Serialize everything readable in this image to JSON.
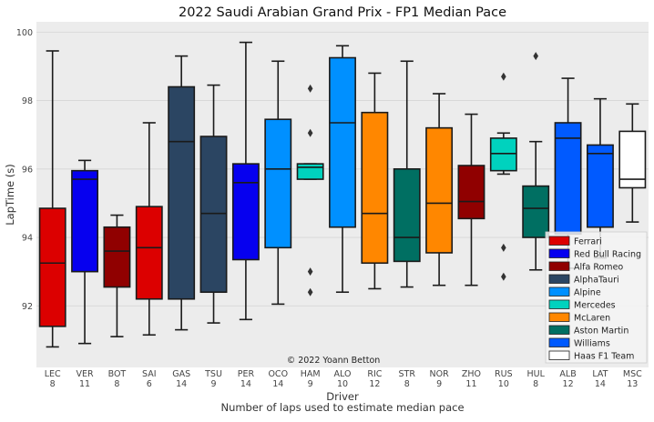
{
  "chart_data": {
    "type": "box",
    "title": "2022 Saudi Arabian Grand Prix - FP1 Median Pace",
    "xlabel": "Driver",
    "xlabel_sub": "Number of laps used to estimate median pace",
    "ylabel": "LapTime (s)",
    "ylim": [
      90.2,
      100.3
    ],
    "yticks": [
      92,
      94,
      96,
      98,
      100
    ],
    "grid": true,
    "legend_position": "lower-right",
    "annotation": "© 2022 Yoann Betton",
    "teams": [
      {
        "name": "Ferrari",
        "color": "#dc0000"
      },
      {
        "name": "Red Bull Racing",
        "color": "#0600ef"
      },
      {
        "name": "Alfa Romeo",
        "color": "#900000"
      },
      {
        "name": "AlphaTauri",
        "color": "#2b4562"
      },
      {
        "name": "Alpine",
        "color": "#0090ff"
      },
      {
        "name": "Mercedes",
        "color": "#00d2be"
      },
      {
        "name": "McLaren",
        "color": "#ff8700"
      },
      {
        "name": "Aston Martin",
        "color": "#006f62"
      },
      {
        "name": "Williams",
        "color": "#005aff"
      },
      {
        "name": "Haas F1 Team",
        "color": "#ffffff"
      }
    ],
    "drivers": [
      {
        "code": "LEC",
        "laps": "8",
        "team": 0,
        "whislo": 90.8,
        "q1": 91.4,
        "med": 93.25,
        "q3": 94.85,
        "whishi": 99.45,
        "fliers": []
      },
      {
        "code": "VER",
        "laps": "11",
        "team": 1,
        "whislo": 90.9,
        "q1": 93.0,
        "med": 95.7,
        "q3": 95.95,
        "whishi": 96.25,
        "fliers": []
      },
      {
        "code": "BOT",
        "laps": "8",
        "team": 2,
        "whislo": 91.1,
        "q1": 92.55,
        "med": 93.6,
        "q3": 94.3,
        "whishi": 94.65,
        "fliers": []
      },
      {
        "code": "SAI",
        "laps": "6",
        "team": 0,
        "whislo": 91.15,
        "q1": 92.2,
        "med": 93.7,
        "q3": 94.9,
        "whishi": 97.35,
        "fliers": []
      },
      {
        "code": "GAS",
        "laps": "14",
        "team": 3,
        "whislo": 91.3,
        "q1": 92.2,
        "med": 96.8,
        "q3": 98.4,
        "whishi": 99.3,
        "fliers": []
      },
      {
        "code": "TSU",
        "laps": "9",
        "team": 3,
        "whislo": 91.5,
        "q1": 92.4,
        "med": 94.7,
        "q3": 96.95,
        "whishi": 98.45,
        "fliers": []
      },
      {
        "code": "PER",
        "laps": "14",
        "team": 1,
        "whislo": 91.6,
        "q1": 93.35,
        "med": 95.6,
        "q3": 96.15,
        "whishi": 99.7,
        "fliers": []
      },
      {
        "code": "OCO",
        "laps": "14",
        "team": 4,
        "whislo": 92.05,
        "q1": 93.7,
        "med": 96.0,
        "q3": 97.45,
        "whishi": 99.15,
        "fliers": []
      },
      {
        "code": "HAM",
        "laps": "9",
        "team": 5,
        "whislo": 95.7,
        "q1": 95.7,
        "med": 96.05,
        "q3": 96.15,
        "whishi": 96.15,
        "fliers": [
          98.35,
          97.05,
          93.0,
          92.4
        ]
      },
      {
        "code": "ALO",
        "laps": "10",
        "team": 4,
        "whislo": 92.4,
        "q1": 94.3,
        "med": 97.35,
        "q3": 99.25,
        "whishi": 99.6,
        "fliers": []
      },
      {
        "code": "RIC",
        "laps": "12",
        "team": 6,
        "whislo": 92.5,
        "q1": 93.25,
        "med": 94.7,
        "q3": 97.65,
        "whishi": 98.8,
        "fliers": []
      },
      {
        "code": "STR",
        "laps": "8",
        "team": 7,
        "whislo": 92.55,
        "q1": 93.3,
        "med": 94.0,
        "q3": 96.0,
        "whishi": 99.15,
        "fliers": []
      },
      {
        "code": "NOR",
        "laps": "9",
        "team": 6,
        "whislo": 92.6,
        "q1": 93.55,
        "med": 95.0,
        "q3": 97.2,
        "whishi": 98.2,
        "fliers": []
      },
      {
        "code": "ZHO",
        "laps": "11",
        "team": 2,
        "whislo": 92.6,
        "q1": 94.55,
        "med": 95.05,
        "q3": 96.1,
        "whishi": 97.6,
        "fliers": []
      },
      {
        "code": "RUS",
        "laps": "10",
        "team": 5,
        "whislo": 95.85,
        "q1": 95.95,
        "med": 96.45,
        "q3": 96.9,
        "whishi": 97.05,
        "fliers": [
          98.7,
          93.7,
          92.85
        ]
      },
      {
        "code": "HUL",
        "laps": "8",
        "team": 7,
        "whislo": 93.05,
        "q1": 94.0,
        "med": 94.85,
        "q3": 95.5,
        "whishi": 96.8,
        "fliers": [
          99.3
        ]
      },
      {
        "code": "ALB",
        "laps": "12",
        "team": 8,
        "whislo": 93.1,
        "q1": 94.1,
        "med": 96.9,
        "q3": 97.35,
        "whishi": 98.65,
        "fliers": []
      },
      {
        "code": "LAT",
        "laps": "14",
        "team": 8,
        "whislo": 93.4,
        "q1": 94.3,
        "med": 96.45,
        "q3": 96.7,
        "whishi": 98.05,
        "fliers": []
      },
      {
        "code": "MSC",
        "laps": "13",
        "team": 9,
        "whislo": 94.45,
        "q1": 95.45,
        "med": 95.7,
        "q3": 97.1,
        "whishi": 97.9,
        "fliers": []
      }
    ]
  }
}
